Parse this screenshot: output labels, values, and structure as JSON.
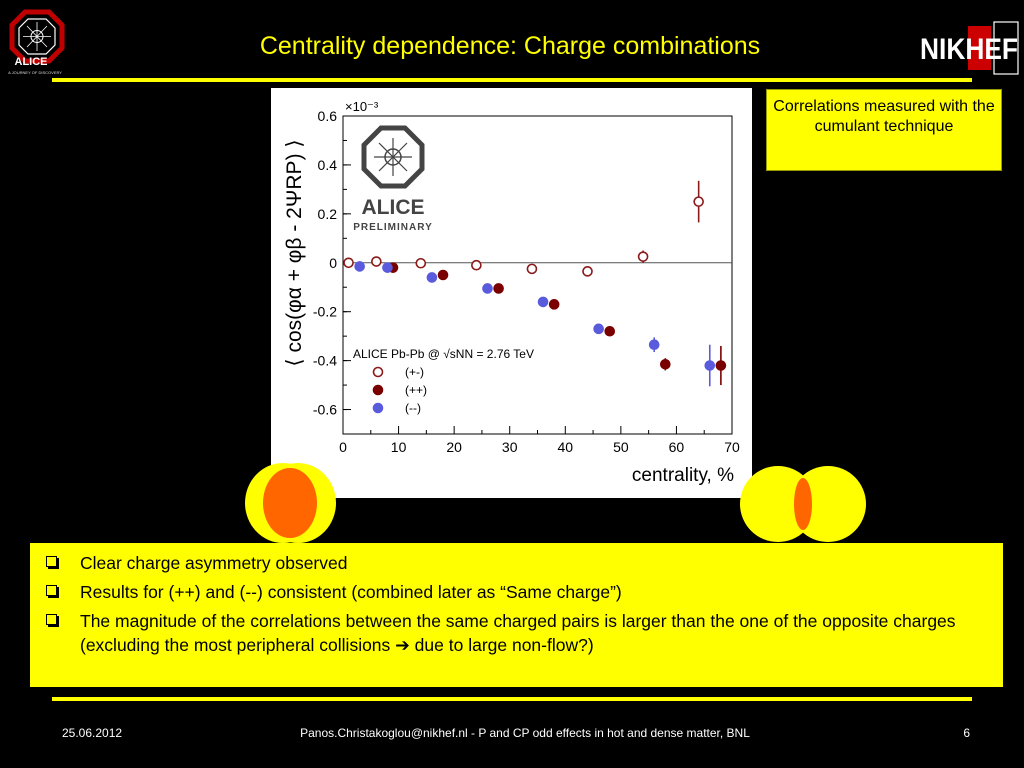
{
  "slide": {
    "title": "Centrality dependence: Charge combinations",
    "note": "Correlations measured with the cumulant technique",
    "bullets": [
      "Clear charge asymmetry observed",
      "Results for (++) and (--) consistent (combined later as “Same charge”)",
      "The magnitude of the correlations between the same charged pairs is larger than the one of the opposite charges (excluding the most peripheral collisions ➔ due to large non-flow?)"
    ],
    "footer": {
      "date": "25.06.2012",
      "center": "Panos.Christakoglou@nikhef.nl - P and CP odd effects in hot and dense matter, BNL",
      "page": "6"
    },
    "logos": {
      "alice_text": "ALICE",
      "alice_tagline": "A JOURNEY OF DISCOVERY",
      "nikhef_text": "NIKHEF",
      "watermark_line1": "ALICE",
      "watermark_line2": "PRELIMINARY"
    },
    "colors": {
      "accent": "#ffff00",
      "background": "#000000",
      "opposite_charge": "#8b1a1a",
      "positive_pair": "#7a0000",
      "negative_pair": "#5a5add",
      "collision_outer": "#ffff00",
      "collision_inner": "#ff6600"
    }
  },
  "chart_data": {
    "type": "scatter",
    "xlabel": "centrality, %",
    "ylabel": "⟨ cos(φα + φβ - 2ΨRP) ⟩",
    "yscale_label": "×10⁻³",
    "xlim": [
      0,
      70
    ],
    "ylim": [
      -0.7,
      0.6
    ],
    "xticks": [
      "0",
      "10",
      "20",
      "30",
      "40",
      "50",
      "60",
      "70"
    ],
    "yticks": [
      "0.6",
      "0.4",
      "0.2",
      "0",
      "-0.2",
      "-0.4",
      "-0.6"
    ],
    "legend_title": "ALICE Pb-Pb @ √sNN = 2.76 TeV",
    "legend_position": "bottom-left",
    "series": [
      {
        "name": "(+-)",
        "marker": "open-circle",
        "points": [
          {
            "x": 1,
            "y": 0.0
          },
          {
            "x": 6,
            "y": 0.005
          },
          {
            "x": 14,
            "y": -0.002
          },
          {
            "x": 24,
            "y": -0.01
          },
          {
            "x": 34,
            "y": -0.025
          },
          {
            "x": 44,
            "y": -0.035
          },
          {
            "x": 54,
            "y": 0.025,
            "err": 0.025
          },
          {
            "x": 64,
            "y": 0.25,
            "err": 0.085
          }
        ]
      },
      {
        "name": "(++)",
        "marker": "filled-circle",
        "color": "#7a0000",
        "points": [
          {
            "x": 9,
            "y": -0.02
          },
          {
            "x": 18,
            "y": -0.05
          },
          {
            "x": 28,
            "y": -0.105
          },
          {
            "x": 38,
            "y": -0.17
          },
          {
            "x": 48,
            "y": -0.28
          },
          {
            "x": 58,
            "y": -0.415,
            "err": 0.025
          },
          {
            "x": 68,
            "y": -0.42,
            "err": 0.08
          }
        ]
      },
      {
        "name": "(--)",
        "marker": "filled-circle",
        "color": "#5a5add",
        "points": [
          {
            "x": 3,
            "y": -0.015
          },
          {
            "x": 8,
            "y": -0.02
          },
          {
            "x": 16,
            "y": -0.06
          },
          {
            "x": 26,
            "y": -0.105
          },
          {
            "x": 36,
            "y": -0.16
          },
          {
            "x": 46,
            "y": -0.27
          },
          {
            "x": 56,
            "y": -0.335,
            "err": 0.03
          },
          {
            "x": 66,
            "y": -0.42,
            "err": 0.085
          }
        ]
      }
    ]
  }
}
